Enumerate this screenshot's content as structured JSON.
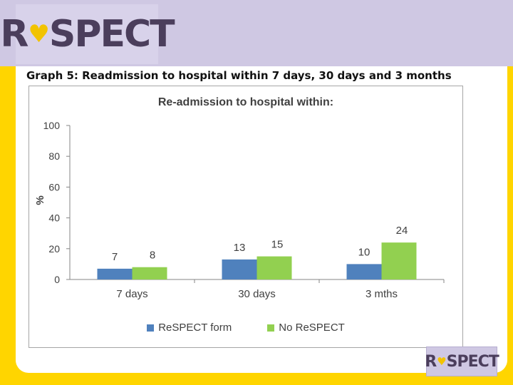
{
  "logo": {
    "prefix": "R",
    "heart": "♥",
    "suffix": "SPECT"
  },
  "caption": "Graph 5: Readmission to hospital within 7 days, 30 days and 3 months",
  "colors": {
    "band": "#CFC8E3",
    "background": "#FFD500",
    "logo_text": "#4B3E5C"
  },
  "chart_data": {
    "type": "bar",
    "title": "Re-admission to hospital within:",
    "xlabel": "",
    "ylabel": "%",
    "ylim": [
      0,
      100
    ],
    "yticks": [
      0,
      20,
      40,
      60,
      80,
      100
    ],
    "categories": [
      "7 days",
      "30 days",
      "3 mths"
    ],
    "series": [
      {
        "name": "ReSPECT form",
        "values": [
          7,
          13,
          10
        ],
        "color": "#4F81BD"
      },
      {
        "name": "No ReSPECT",
        "values": [
          8,
          15,
          24
        ],
        "color": "#92D050"
      }
    ],
    "grid": false,
    "legend": "bottom"
  }
}
